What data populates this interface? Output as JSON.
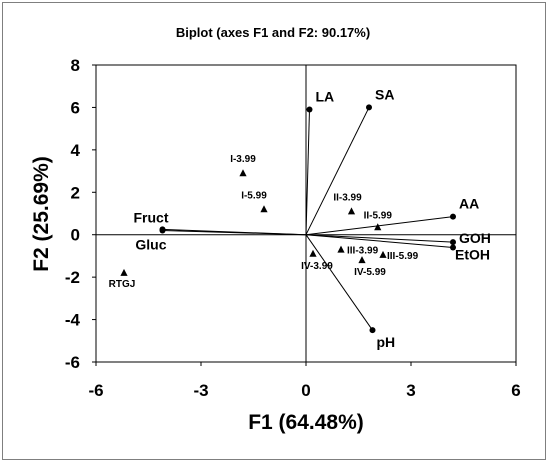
{
  "chart_data": {
    "type": "scatter",
    "title": "Biplot (axes F1 and F2: 90.17%)",
    "xlabel": "F1 (64.48%)",
    "ylabel": "F2 (25.69%)",
    "xlim": [
      -6,
      6
    ],
    "ylim": [
      -6,
      8
    ],
    "xticks": [
      "-6",
      "-3",
      "0",
      "3",
      "6"
    ],
    "yticks": [
      "-6",
      "-4",
      "-2",
      "0",
      "2",
      "4",
      "6",
      "8"
    ],
    "grid": false,
    "variables": [
      {
        "name": "LA",
        "x": 0.1,
        "y": 5.9
      },
      {
        "name": "SA",
        "x": 1.8,
        "y": 6.0
      },
      {
        "name": "AA",
        "x": 4.2,
        "y": 0.85
      },
      {
        "name": "GOH",
        "x": 4.2,
        "y": -0.35
      },
      {
        "name": "EtOH",
        "x": 4.2,
        "y": -0.6
      },
      {
        "name": "pH",
        "x": 1.9,
        "y": -4.5
      },
      {
        "name": "Fruct",
        "x": -4.1,
        "y": 0.25
      },
      {
        "name": "Gluc",
        "x": -4.1,
        "y": 0.2
      }
    ],
    "observations": [
      {
        "name": "I-3.99",
        "x": -1.8,
        "y": 2.9
      },
      {
        "name": "I-5.99",
        "x": -1.2,
        "y": 1.2
      },
      {
        "name": "II-3.99",
        "x": 1.3,
        "y": 1.1
      },
      {
        "name": "II-5.99",
        "x": 2.05,
        "y": 0.35
      },
      {
        "name": "III-3.99",
        "x": 1.0,
        "y": -0.7
      },
      {
        "name": "III-5.99",
        "x": 2.2,
        "y": -0.95
      },
      {
        "name": "IV-3.99",
        "x": 0.2,
        "y": -0.9
      },
      {
        "name": "IV-5.99",
        "x": 1.6,
        "y": -1.2
      },
      {
        "name": "RTGJ",
        "x": -5.2,
        "y": -1.8
      }
    ]
  }
}
